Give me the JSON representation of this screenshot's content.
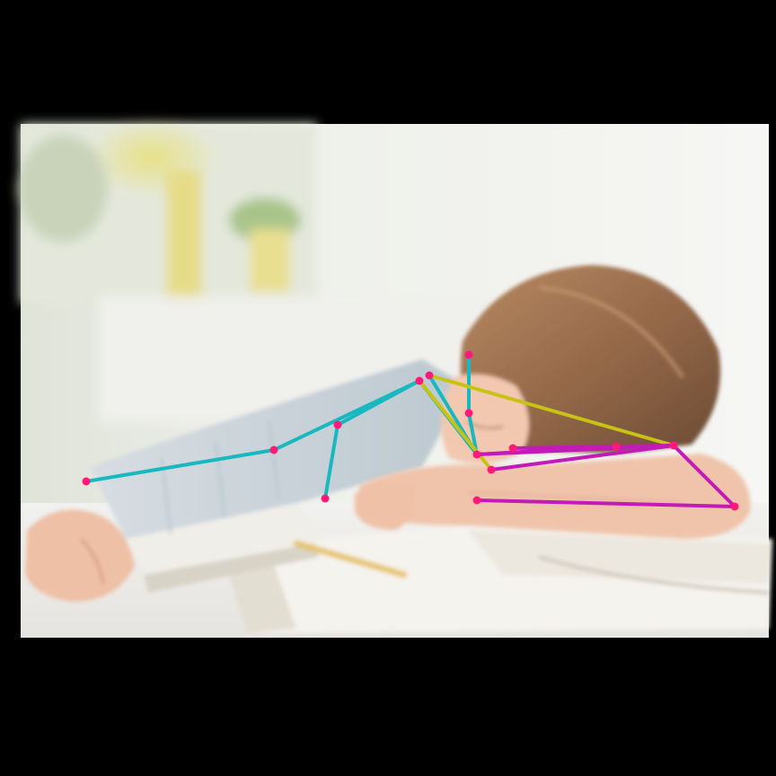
{
  "scene": {
    "subject": "child-asleep-on-open-book",
    "background": "blurred-window-with-plants"
  },
  "overlay": {
    "type": "pose-keypoints",
    "colors": {
      "limb_cyan": "#17b8bf",
      "limb_yellow": "#c7c214",
      "limb_magenta": "#c21bb8",
      "joint": "#ff1a7a"
    }
  }
}
